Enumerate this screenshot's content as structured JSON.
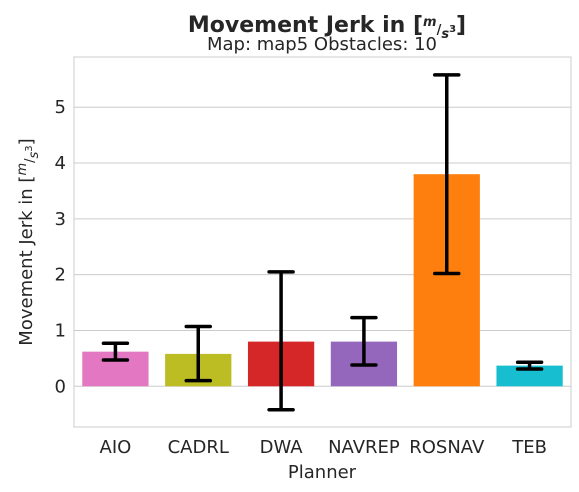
{
  "chart_data": {
    "type": "bar",
    "title": "Movement Jerk in [m/s³]",
    "subtitle": "Map: map5 Obstacles: 10",
    "xlabel": "Planner",
    "ylabel": "Movement Jerk in [m/s³]",
    "ylim": [
      -0.73,
      5.9
    ],
    "yticks": [
      0,
      1,
      2,
      3,
      4,
      5
    ],
    "grid": true,
    "categories": [
      "AIO",
      "CADRL",
      "DWA",
      "NAVREP",
      "ROSNAV",
      "TEB"
    ],
    "values": [
      0.62,
      0.58,
      0.8,
      0.8,
      3.8,
      0.37
    ],
    "error_low": [
      0.47,
      0.1,
      -0.42,
      0.38,
      2.02,
      0.31
    ],
    "error_high": [
      0.77,
      1.07,
      2.05,
      1.23,
      5.58,
      0.43
    ],
    "colors": [
      "#e377c2",
      "#bcbd22",
      "#d62728",
      "#9467bd",
      "#ff7f0e",
      "#17becf"
    ]
  }
}
